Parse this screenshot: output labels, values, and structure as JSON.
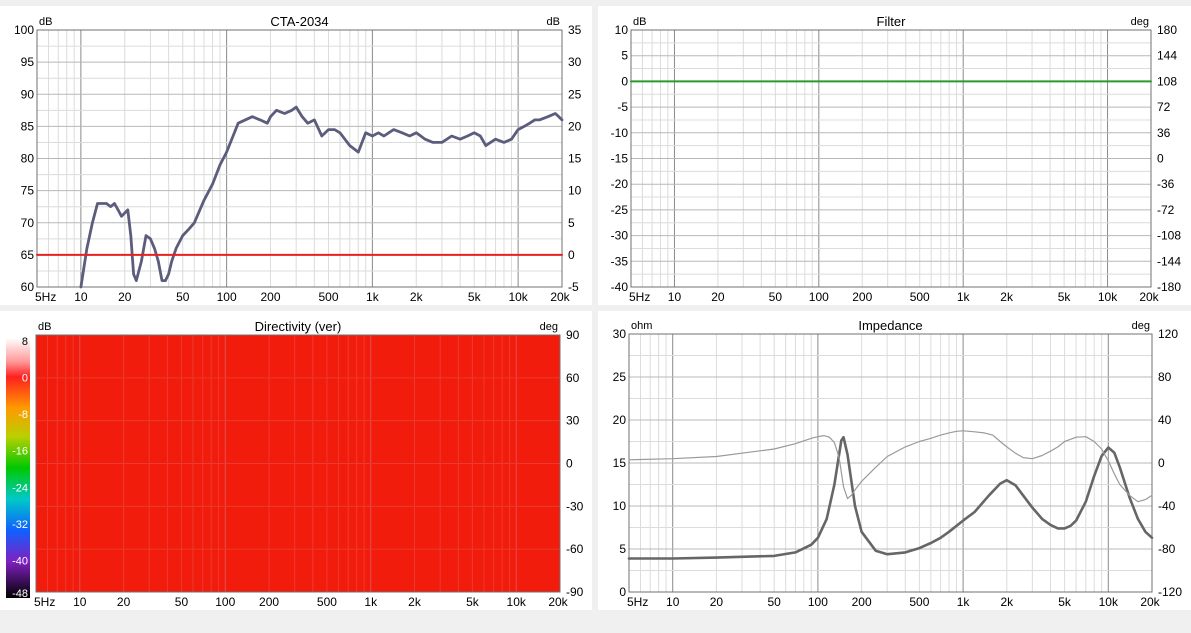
{
  "chart_data": [
    {
      "id": "cta",
      "type": "line",
      "title": "CTA-2034",
      "left_unit": "dB",
      "right_unit": "dB",
      "x_scale": "log",
      "xlim": [
        5,
        20000
      ],
      "ylim": [
        60,
        100
      ],
      "y2lim": [
        -5,
        35
      ],
      "y_ticks": [
        "100",
        "95",
        "90",
        "85",
        "80",
        "75",
        "70",
        "65",
        "60"
      ],
      "y2_ticks": [
        "35",
        "30",
        "25",
        "20",
        "15",
        "10",
        "5",
        "0",
        "-5"
      ],
      "x_ticks": [
        "5Hz",
        "10",
        "20",
        "50",
        "100",
        "200",
        "500",
        "1k",
        "2k",
        "5k",
        "10k",
        "20k"
      ],
      "grid": true,
      "series": [
        {
          "axis": "left",
          "color": "#5c5c7c",
          "x": [
            10,
            11,
            12,
            13,
            15,
            16,
            17,
            18,
            19,
            21,
            22,
            23,
            24,
            26,
            28,
            30,
            32,
            34,
            36,
            38,
            40,
            42,
            45,
            50,
            55,
            60,
            70,
            80,
            90,
            100,
            120,
            150,
            170,
            190,
            200,
            220,
            250,
            280,
            300,
            330,
            360,
            400,
            450,
            500,
            550,
            600,
            700,
            800,
            900,
            1000,
            1100,
            1200,
            1400,
            1600,
            1800,
            2000,
            2300,
            2600,
            3000,
            3500,
            4000,
            4500,
            5000,
            5500,
            6000,
            7000,
            8000,
            9000,
            10000,
            11000,
            12000,
            13000,
            14000,
            16000,
            18000,
            19000,
            20000
          ],
          "y": [
            60,
            66,
            70,
            73,
            73,
            72.5,
            73,
            72,
            71,
            72,
            68,
            62,
            61,
            64,
            68,
            67.5,
            66,
            64,
            61,
            61,
            62,
            64,
            66,
            68,
            69,
            70,
            73.5,
            76,
            79,
            81,
            85.5,
            86.5,
            86,
            85.5,
            86.5,
            87.5,
            87,
            87.5,
            88,
            86.5,
            85.5,
            86,
            83.5,
            84.5,
            84.5,
            84,
            82,
            81,
            84,
            83.5,
            84,
            83.5,
            84.5,
            84,
            83.5,
            84,
            83,
            82.5,
            82.5,
            83.5,
            83,
            83.5,
            84,
            83.5,
            82,
            83,
            82.5,
            83,
            84.5,
            85,
            85.5,
            86,
            86,
            86.5,
            87,
            86.5,
            86
          ]
        },
        {
          "axis": "left",
          "color": "#e82020",
          "x": [
            5,
            20000
          ],
          "y": [
            65,
            65
          ]
        }
      ]
    },
    {
      "id": "filter",
      "type": "line",
      "title": "Filter",
      "left_unit": "dB",
      "right_unit": "deg",
      "x_scale": "log",
      "xlim": [
        5,
        20000
      ],
      "ylim": [
        -40,
        10
      ],
      "y2lim": [
        -180,
        180
      ],
      "y_ticks": [
        "10",
        "5",
        "0",
        "-5",
        "-10",
        "-15",
        "-20",
        "-25",
        "-30",
        "-35",
        "-40"
      ],
      "y2_ticks": [
        "180",
        "144",
        "108",
        "72",
        "36",
        "0",
        "-36",
        "-72",
        "-108",
        "-144",
        "-180"
      ],
      "x_ticks": [
        "5Hz",
        "10",
        "20",
        "50",
        "100",
        "200",
        "500",
        "1k",
        "2k",
        "5k",
        "10k",
        "20k"
      ],
      "grid": true,
      "series": [
        {
          "axis": "left",
          "color": "#2a9a2a",
          "x": [
            5,
            20000
          ],
          "y": [
            0,
            0
          ]
        }
      ]
    },
    {
      "id": "directivity",
      "type": "heatmap",
      "title": "Directivity (ver)",
      "left_unit": "dB",
      "right_unit": "deg",
      "x_scale": "log",
      "xlim": [
        5,
        20000
      ],
      "y2lim": [
        -90,
        90
      ],
      "y2_ticks": [
        "90",
        "60",
        "30",
        "0",
        "-30",
        "-60",
        "-90"
      ],
      "x_ticks": [
        "5Hz",
        "10",
        "20",
        "50",
        "100",
        "200",
        "500",
        "1k",
        "2k",
        "5k",
        "10k",
        "20k"
      ],
      "colorbar_ticks": [
        "8",
        "0",
        "-8",
        "-16",
        "-24",
        "-32",
        "-40",
        "-48"
      ],
      "fill_color": "#f21c0c",
      "grid": true
    },
    {
      "id": "impedance",
      "type": "line",
      "title": "Impedance",
      "left_unit": "ohm",
      "right_unit": "deg",
      "x_scale": "log",
      "xlim": [
        5,
        20000
      ],
      "ylim": [
        0,
        30
      ],
      "y2lim": [
        -120,
        120
      ],
      "y_ticks": [
        "30",
        "25",
        "20",
        "15",
        "10",
        "5",
        "0"
      ],
      "y2_ticks": [
        "120",
        "80",
        "40",
        "0",
        "-40",
        "-80",
        "-120"
      ],
      "x_ticks": [
        "5Hz",
        "10",
        "20",
        "50",
        "100",
        "200",
        "500",
        "1k",
        "2k",
        "5k",
        "10k",
        "20k"
      ],
      "grid": true,
      "series": [
        {
          "axis": "left",
          "color": "#666666",
          "width": 2.6,
          "x": [
            5,
            10,
            20,
            50,
            70,
            90,
            100,
            115,
            130,
            145,
            150,
            160,
            180,
            200,
            250,
            300,
            400,
            500,
            600,
            700,
            800,
            1000,
            1200,
            1500,
            1800,
            2000,
            2300,
            2600,
            3000,
            3500,
            4000,
            4500,
            5000,
            5500,
            6000,
            7000,
            8000,
            9000,
            10000,
            11000,
            12000,
            14000,
            16000,
            18000,
            20000
          ],
          "y": [
            3.9,
            3.9,
            4.0,
            4.2,
            4.6,
            5.5,
            6.3,
            8.5,
            12.5,
            17.6,
            18,
            16,
            10,
            7,
            4.8,
            4.4,
            4.6,
            5.1,
            5.7,
            6.3,
            7,
            8.3,
            9.3,
            11.2,
            12.6,
            13,
            12.4,
            11.2,
            9.8,
            8.5,
            7.8,
            7.4,
            7.4,
            7.7,
            8.3,
            10.5,
            13.5,
            15.8,
            16.8,
            16.2,
            14.5,
            11,
            8.5,
            7,
            6.3
          ]
        },
        {
          "axis": "right",
          "color": "#9a9a9a",
          "width": 1.2,
          "x": [
            5,
            10,
            20,
            50,
            70,
            90,
            100,
            110,
            120,
            130,
            140,
            150,
            160,
            170,
            180,
            200,
            250,
            300,
            400,
            500,
            600,
            700,
            800,
            900,
            1000,
            1100,
            1200,
            1400,
            1600,
            1800,
            2000,
            2300,
            2600,
            3000,
            3500,
            4000,
            4500,
            5000,
            5500,
            6000,
            7000,
            8000,
            9000,
            10000,
            11000,
            12000,
            14000,
            16000,
            18000,
            20000
          ],
          "y": [
            3,
            4,
            6,
            13,
            18,
            23,
            24.5,
            25.5,
            24,
            19,
            5,
            -22,
            -33,
            -30,
            -25,
            -17,
            -4,
            6,
            15,
            20,
            23,
            26,
            28,
            29.5,
            30,
            29.5,
            29,
            28,
            26,
            20,
            15,
            9,
            5,
            4,
            7,
            11,
            15,
            20,
            22,
            24,
            24.5,
            20,
            13,
            2,
            -10,
            -20,
            -30,
            -36,
            -34,
            -30
          ]
        }
      ]
    }
  ]
}
